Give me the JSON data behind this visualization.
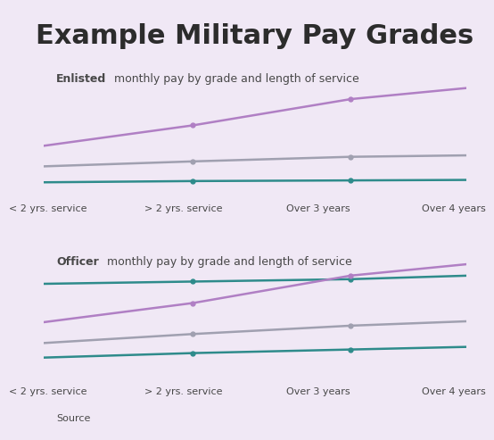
{
  "title": "Example Military Pay Grades",
  "bg": "#f0e8f5",
  "panel_bg": "#ede4f2",
  "text_color": "#484848",
  "title_color": "#2c2c2c",
  "sub1_bold": "Enlisted",
  "sub1_rest": " monthly pay by grade and length of service",
  "sub2_bold": "Officer",
  "sub2_rest": " monthly pay by grade and length of service",
  "footer_text": "Source",
  "x_labels": [
    "< 2 yrs. service",
    "> 2 yrs. service",
    "Over 3 years",
    "Over 4 years"
  ],
  "panel1_lines": [
    {
      "color": "#b07fc4",
      "y": [
        0.82,
        1.15,
        1.55,
        1.78
      ]
    },
    {
      "color": "#a0a0b0",
      "y": [
        0.52,
        0.6,
        0.67,
        0.7
      ]
    },
    {
      "color": "#2e8b8b",
      "y": [
        0.28,
        0.3,
        0.31,
        0.32
      ]
    }
  ],
  "panel2_lines": [
    {
      "color": "#2e8b8b",
      "y": [
        0.88,
        0.9,
        0.92,
        0.96
      ]
    },
    {
      "color": "#b07fc4",
      "y": [
        0.55,
        0.72,
        0.95,
        1.08
      ]
    },
    {
      "color": "#a0a0b0",
      "y": [
        0.38,
        0.46,
        0.53,
        0.58
      ]
    },
    {
      "color": "#2e8b8b",
      "y": [
        0.26,
        0.3,
        0.33,
        0.36
      ]
    }
  ],
  "x": [
    0,
    1,
    2,
    3
  ],
  "title_fontsize": 22,
  "sub_fontsize": 9,
  "xlabel_fontsize": 8,
  "footer_fontsize": 8
}
